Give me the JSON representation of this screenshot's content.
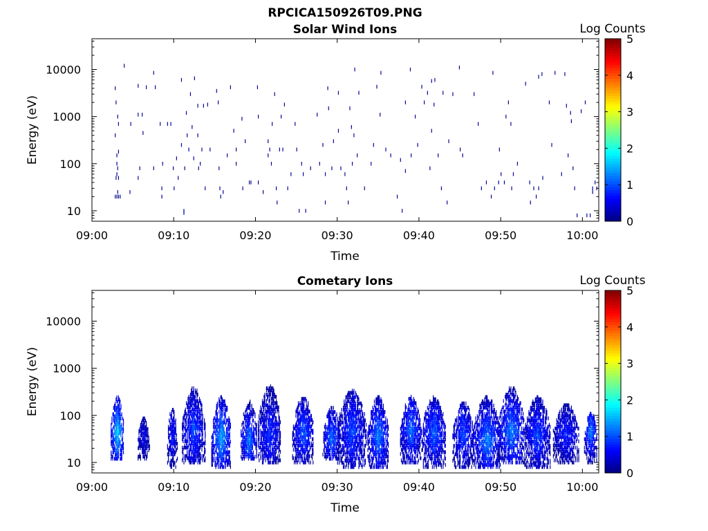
{
  "figure_title": "RPCICA150926T09.PNG",
  "chart_data": [
    {
      "type": "heatmap",
      "title": "Solar Wind Ions",
      "xlabel": "Time",
      "ylabel": "Energy (eV)",
      "x_tick_labels": [
        "09:00",
        "09:10",
        "09:20",
        "09:30",
        "09:40",
        "09:50",
        "10:00"
      ],
      "x_range_minutes": [
        0,
        62
      ],
      "y_scale": "log",
      "y_tick_labels": [
        "10",
        "100",
        "1000",
        "10000"
      ],
      "y_range": [
        6,
        45000
      ],
      "colorbar": {
        "label": "Log Counts",
        "range": [
          0,
          5
        ],
        "tick_labels": [
          "0",
          "1",
          "2",
          "3",
          "4",
          "5"
        ]
      },
      "colormap": "jet",
      "grid": false,
      "cells": [
        [
          2.8,
          4000,
          0.1
        ],
        [
          2.9,
          2000,
          0.1
        ],
        [
          3.1,
          1000,
          0.1
        ],
        [
          2.8,
          400,
          0.1
        ],
        [
          3.2,
          700,
          0.1
        ],
        [
          3.0,
          150,
          0.1
        ],
        [
          3.2,
          180,
          0.1
        ],
        [
          3.0,
          100,
          0.1
        ],
        [
          3.1,
          80,
          0.1
        ],
        [
          3.0,
          60,
          0.1
        ],
        [
          3.2,
          50,
          0.1
        ],
        [
          2.9,
          50,
          0.1
        ],
        [
          2.8,
          20,
          0.1
        ],
        [
          3.0,
          20,
          0.1
        ],
        [
          3.2,
          20,
          0.1
        ],
        [
          3.4,
          20,
          0.1
        ],
        [
          3.1,
          25,
          0.1
        ],
        [
          3.9,
          12000,
          0.1
        ],
        [
          4.6,
          25,
          0.1
        ],
        [
          4.7,
          700,
          0.1
        ],
        [
          5.6,
          4500,
          0.1
        ],
        [
          5.6,
          1100,
          0.1
        ],
        [
          6.1,
          1100,
          0.1
        ],
        [
          6.2,
          450,
          0.1
        ],
        [
          5.8,
          80,
          0.1
        ],
        [
          5.6,
          50,
          0.1
        ],
        [
          6.6,
          4200,
          0.1
        ],
        [
          7.5,
          8500,
          0.1
        ],
        [
          7.5,
          80,
          0.1
        ],
        [
          7.7,
          4200,
          0.1
        ],
        [
          8.3,
          700,
          0.1
        ],
        [
          8.5,
          30,
          0.1
        ],
        [
          8.5,
          20,
          0.1
        ],
        [
          8.6,
          100,
          0.1
        ],
        [
          9.2,
          700,
          0.1
        ],
        [
          9.6,
          700,
          0.1
        ],
        [
          9.9,
          80,
          0.1
        ],
        [
          10.0,
          30,
          0.1
        ],
        [
          10.3,
          130,
          0.1
        ],
        [
          10.5,
          50,
          0.1
        ],
        [
          10.9,
          6000,
          0.1
        ],
        [
          10.9,
          250,
          0.1
        ],
        [
          11.2,
          10,
          0.1
        ],
        [
          11.2,
          9,
          0.1
        ],
        [
          11.3,
          80,
          0.1
        ],
        [
          11.5,
          1200,
          0.1
        ],
        [
          11.6,
          400,
          0.1
        ],
        [
          11.8,
          200,
          0.1
        ],
        [
          12.0,
          3000,
          0.1
        ],
        [
          12.2,
          600,
          0.1
        ],
        [
          12.5,
          6500,
          0.1
        ],
        [
          12.4,
          130,
          0.1
        ],
        [
          12.9,
          1700,
          0.1
        ],
        [
          12.9,
          400,
          0.1
        ],
        [
          13.0,
          80,
          0.1
        ],
        [
          13.2,
          100,
          0.1
        ],
        [
          13.4,
          200,
          0.1
        ],
        [
          13.6,
          1700,
          0.1
        ],
        [
          13.8,
          30,
          0.1
        ],
        [
          14.1,
          1800,
          0.1
        ],
        [
          14.4,
          200,
          0.1
        ],
        [
          15.2,
          3500,
          0.1
        ],
        [
          15.4,
          2000,
          0.1
        ],
        [
          15.5,
          80,
          0.1
        ],
        [
          15.6,
          30,
          0.1
        ],
        [
          15.7,
          20,
          0.1
        ],
        [
          16.0,
          25,
          0.1
        ],
        [
          16.5,
          150,
          0.1
        ],
        [
          16.9,
          4200,
          0.1
        ],
        [
          17.3,
          500,
          0.1
        ],
        [
          17.6,
          100,
          0.1
        ],
        [
          17.6,
          200,
          0.1
        ],
        [
          18.3,
          900,
          0.1
        ],
        [
          18.4,
          30,
          0.1
        ],
        [
          18.7,
          300,
          0.1
        ],
        [
          19.2,
          40,
          0.1
        ],
        [
          19.4,
          40,
          0.1
        ],
        [
          20.2,
          4200,
          0.1
        ],
        [
          20.3,
          1000,
          0.1
        ],
        [
          20.3,
          40,
          0.1
        ],
        [
          20.9,
          25,
          0.1
        ],
        [
          21.5,
          300,
          0.1
        ],
        [
          21.5,
          150,
          0.1
        ],
        [
          21.7,
          200,
          0.1
        ],
        [
          21.9,
          100,
          0.1
        ],
        [
          22.0,
          700,
          0.1
        ],
        [
          22.3,
          3000,
          0.1
        ],
        [
          22.5,
          30,
          0.1
        ],
        [
          22.6,
          15,
          0.1
        ],
        [
          22.9,
          200,
          0.1
        ],
        [
          23.1,
          1000,
          0.1
        ],
        [
          23.3,
          200,
          0.1
        ],
        [
          23.5,
          1800,
          0.1
        ],
        [
          23.9,
          30,
          0.1
        ],
        [
          24.3,
          60,
          0.1
        ],
        [
          24.8,
          700,
          0.1
        ],
        [
          25.0,
          200,
          0.1
        ],
        [
          25.6,
          100,
          0.1
        ],
        [
          25.8,
          60,
          0.1
        ],
        [
          25.3,
          10,
          0.1
        ],
        [
          26.1,
          10,
          0.1
        ],
        [
          26.7,
          80,
          0.1
        ],
        [
          27.5,
          1100,
          0.1
        ],
        [
          27.8,
          100,
          0.1
        ],
        [
          28.2,
          250,
          0.1
        ],
        [
          28.5,
          60,
          0.1
        ],
        [
          28.5,
          15,
          0.1
        ],
        [
          28.8,
          4000,
          0.1
        ],
        [
          28.9,
          1500,
          0.1
        ],
        [
          29.3,
          80,
          0.1
        ],
        [
          29.5,
          300,
          0.1
        ],
        [
          30.1,
          3200,
          0.1
        ],
        [
          30.1,
          500,
          0.1
        ],
        [
          30.4,
          80,
          0.1
        ],
        [
          30.9,
          60,
          0.1
        ],
        [
          31.1,
          30,
          0.1
        ],
        [
          31.3,
          15,
          0.1
        ],
        [
          31.5,
          1500,
          0.1
        ],
        [
          31.7,
          600,
          0.1
        ],
        [
          31.8,
          100,
          0.1
        ],
        [
          32.0,
          400,
          0.1
        ],
        [
          32.1,
          10000,
          0.1
        ],
        [
          32.4,
          150,
          0.1
        ],
        [
          32.6,
          3200,
          0.1
        ],
        [
          33.3,
          30,
          0.1
        ],
        [
          34.1,
          100,
          0.1
        ],
        [
          34.4,
          250,
          0.1
        ],
        [
          34.8,
          4300,
          0.1
        ],
        [
          35.3,
          8500,
          0.1
        ],
        [
          35.2,
          1100,
          0.1
        ],
        [
          35.9,
          200,
          0.1
        ],
        [
          36.5,
          150,
          0.1
        ],
        [
          37.3,
          20,
          0.1
        ],
        [
          37.7,
          120,
          0.1
        ],
        [
          37.9,
          10,
          0.1
        ],
        [
          38.3,
          70,
          0.1
        ],
        [
          38.3,
          2000,
          0.1
        ],
        [
          38.9,
          10000,
          0.1
        ],
        [
          39.0,
          150,
          0.1
        ],
        [
          39.5,
          1000,
          0.1
        ],
        [
          39.8,
          250,
          0.1
        ],
        [
          40.3,
          4300,
          0.1
        ],
        [
          40.6,
          2000,
          0.1
        ],
        [
          41.0,
          3200,
          0.1
        ],
        [
          41.3,
          80,
          0.1
        ],
        [
          41.5,
          5700,
          0.1
        ],
        [
          41.9,
          6000,
          0.1
        ],
        [
          41.8,
          1800,
          0.1
        ],
        [
          41.5,
          500,
          0.1
        ],
        [
          42.3,
          150,
          0.1
        ],
        [
          42.7,
          30,
          0.1
        ],
        [
          42.9,
          3200,
          0.1
        ],
        [
          43.4,
          15,
          0.1
        ],
        [
          43.6,
          300,
          0.1
        ],
        [
          44.1,
          3000,
          0.1
        ],
        [
          44.9,
          11000,
          0.1
        ],
        [
          45.3,
          150,
          0.1
        ],
        [
          45.0,
          200,
          0.1
        ],
        [
          46.7,
          3000,
          0.1
        ],
        [
          47.2,
          700,
          0.1
        ],
        [
          47.6,
          30,
          0.1
        ],
        [
          48.2,
          40,
          0.1
        ],
        [
          48.8,
          20,
          0.1
        ],
        [
          49.0,
          8500,
          0.1
        ],
        [
          49.2,
          30,
          0.1
        ],
        [
          49.7,
          40,
          0.1
        ],
        [
          49.8,
          200,
          0.1
        ],
        [
          50.0,
          60,
          0.1
        ],
        [
          50.4,
          40,
          0.1
        ],
        [
          50.6,
          1000,
          0.1
        ],
        [
          50.9,
          2000,
          0.1
        ],
        [
          51.3,
          30,
          0.1
        ],
        [
          51.5,
          60,
          0.1
        ],
        [
          51.2,
          700,
          0.1
        ],
        [
          52.0,
          100,
          0.1
        ],
        [
          53.0,
          5000,
          0.1
        ],
        [
          53.5,
          40,
          0.1
        ],
        [
          53.6,
          15,
          0.1
        ],
        [
          54.0,
          30,
          0.1
        ],
        [
          54.3,
          20,
          0.1
        ],
        [
          54.6,
          7000,
          0.1
        ],
        [
          54.6,
          30,
          0.1
        ],
        [
          55.0,
          8000,
          0.1
        ],
        [
          55.1,
          50,
          0.1
        ],
        [
          55.9,
          2000,
          0.1
        ],
        [
          56.2,
          250,
          0.1
        ],
        [
          56.6,
          8500,
          0.1
        ],
        [
          57.0,
          6,
          0.1
        ],
        [
          57.4,
          60,
          0.1
        ],
        [
          57.8,
          8000,
          0.1
        ],
        [
          58.0,
          1700,
          0.1
        ],
        [
          58.5,
          1200,
          0.1
        ],
        [
          58.6,
          800,
          0.1
        ],
        [
          58.2,
          150,
          0.1
        ],
        [
          58.8,
          80,
          0.1
        ],
        [
          59.0,
          30,
          0.1
        ],
        [
          59.3,
          8,
          0.1
        ],
        [
          59.8,
          1300,
          0.1
        ],
        [
          60.3,
          2000,
          0.1
        ],
        [
          60.5,
          8,
          0.1
        ],
        [
          60.9,
          8,
          0.1
        ],
        [
          61.2,
          25,
          0.1
        ],
        [
          61.5,
          40,
          0.1
        ],
        [
          61.7,
          30,
          0.1
        ],
        [
          61.2,
          30,
          0.1
        ]
      ]
    },
    {
      "type": "heatmap",
      "title": "Cometary Ions",
      "xlabel": "Time",
      "ylabel": "Energy (eV)",
      "x_tick_labels": [
        "09:00",
        "09:10",
        "09:20",
        "09:30",
        "09:40",
        "09:50",
        "10:00"
      ],
      "x_range_minutes": [
        0,
        62
      ],
      "y_scale": "log",
      "y_tick_labels": [
        "10",
        "100",
        "1000",
        "10000"
      ],
      "y_range": [
        6,
        45000
      ],
      "colorbar": {
        "label": "Log Counts",
        "range": [
          0,
          5
        ],
        "tick_labels": [
          "0",
          "1",
          "2",
          "3",
          "4",
          "5"
        ]
      },
      "colormap": "jet",
      "grid": false,
      "bursts": [
        {
          "center_min": 3.1,
          "halfwidth_min": 0.8,
          "e_low": 12,
          "e_high": 250,
          "peak": 1.8,
          "e_peak": 45
        },
        {
          "center_min": 6.3,
          "halfwidth_min": 0.7,
          "e_low": 12,
          "e_high": 90,
          "peak": 0.6,
          "e_peak": 35
        },
        {
          "center_min": 9.8,
          "halfwidth_min": 0.6,
          "e_low": 8,
          "e_high": 150,
          "peak": 0.8,
          "e_peak": 40
        },
        {
          "center_min": 12.4,
          "halfwidth_min": 1.4,
          "e_low": 10,
          "e_high": 400,
          "peak": 1.0,
          "e_peak": 50
        },
        {
          "center_min": 15.8,
          "halfwidth_min": 1.2,
          "e_low": 8,
          "e_high": 250,
          "peak": 1.5,
          "e_peak": 35
        },
        {
          "center_min": 19.2,
          "halfwidth_min": 1.0,
          "e_low": 12,
          "e_high": 200,
          "peak": 1.3,
          "e_peak": 30
        },
        {
          "center_min": 21.7,
          "halfwidth_min": 1.4,
          "e_low": 10,
          "e_high": 450,
          "peak": 0.9,
          "e_peak": 40
        },
        {
          "center_min": 25.8,
          "halfwidth_min": 1.3,
          "e_low": 10,
          "e_high": 250,
          "peak": 1.1,
          "e_peak": 45
        },
        {
          "center_min": 29.3,
          "halfwidth_min": 1.1,
          "e_low": 12,
          "e_high": 150,
          "peak": 1.2,
          "e_peak": 35
        },
        {
          "center_min": 31.8,
          "halfwidth_min": 1.8,
          "e_low": 8,
          "e_high": 350,
          "peak": 1.0,
          "e_peak": 45
        },
        {
          "center_min": 35.0,
          "halfwidth_min": 1.3,
          "e_low": 8,
          "e_high": 250,
          "peak": 1.3,
          "e_peak": 35
        },
        {
          "center_min": 39.0,
          "halfwidth_min": 1.3,
          "e_low": 10,
          "e_high": 250,
          "peak": 1.2,
          "e_peak": 50
        },
        {
          "center_min": 41.8,
          "halfwidth_min": 1.5,
          "e_low": 8,
          "e_high": 250,
          "peak": 1.1,
          "e_peak": 45
        },
        {
          "center_min": 45.4,
          "halfwidth_min": 1.3,
          "e_low": 8,
          "e_high": 200,
          "peak": 1.0,
          "e_peak": 40
        },
        {
          "center_min": 48.3,
          "halfwidth_min": 1.7,
          "e_low": 8,
          "e_high": 250,
          "peak": 1.3,
          "e_peak": 30
        },
        {
          "center_min": 51.3,
          "halfwidth_min": 1.6,
          "e_low": 10,
          "e_high": 400,
          "peak": 1.3,
          "e_peak": 45
        },
        {
          "center_min": 54.5,
          "halfwidth_min": 1.6,
          "e_low": 8,
          "e_high": 250,
          "peak": 1.0,
          "e_peak": 40
        },
        {
          "center_min": 58.0,
          "halfwidth_min": 1.6,
          "e_low": 10,
          "e_high": 180,
          "peak": 0.8,
          "e_peak": 40
        },
        {
          "center_min": 61.0,
          "halfwidth_min": 0.8,
          "e_low": 10,
          "e_high": 120,
          "peak": 1.3,
          "e_peak": 45
        }
      ]
    }
  ]
}
